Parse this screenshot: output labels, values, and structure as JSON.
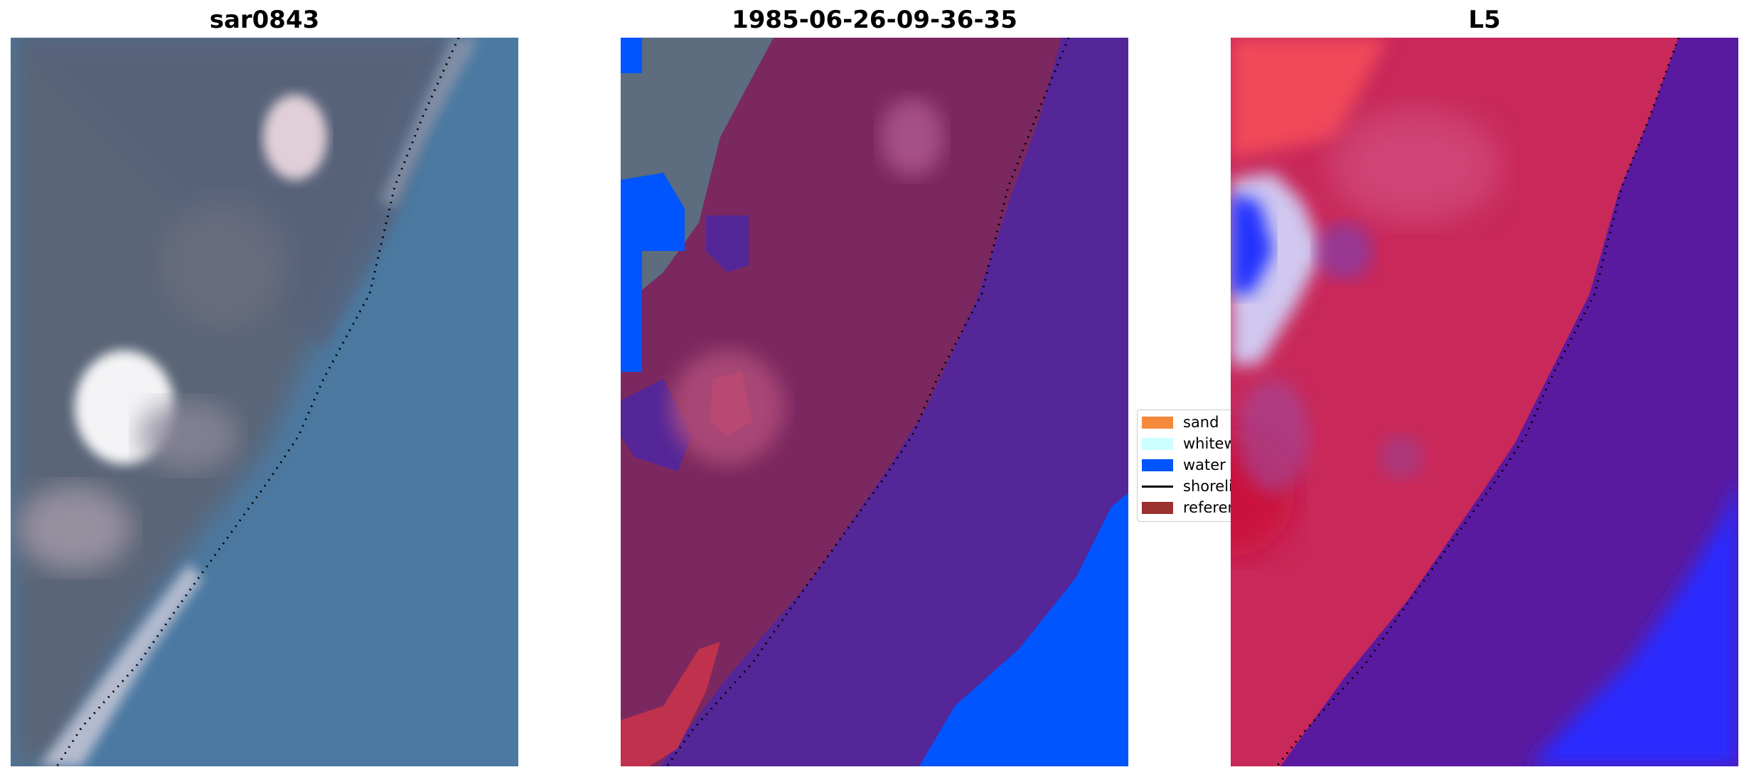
{
  "panels": [
    {
      "title": "sar0843"
    },
    {
      "title": "1985-06-26-09-36-35"
    },
    {
      "title": "L5"
    }
  ],
  "legend": {
    "items": [
      {
        "label": "sand",
        "color": "#f58a3c"
      },
      {
        "label": "whitewater",
        "color": "#ccffff"
      },
      {
        "label": "water",
        "color": "#0055ff"
      },
      {
        "label": "shoreline",
        "color": "#000000"
      },
      {
        "label": "reference shoreline",
        "color": "#9a3030"
      }
    ]
  },
  "colors": {
    "rgb_water": "#4a77a0",
    "rgb_land": "#5a6478",
    "class_land": "#7b2860",
    "class_water": "#542698",
    "class_water_blue": "#0055ff",
    "class_gray": "#5d6c7e",
    "index_red": "#c81e46",
    "index_purple": "#5a1aa0",
    "index_blue": "#2a2aff"
  }
}
